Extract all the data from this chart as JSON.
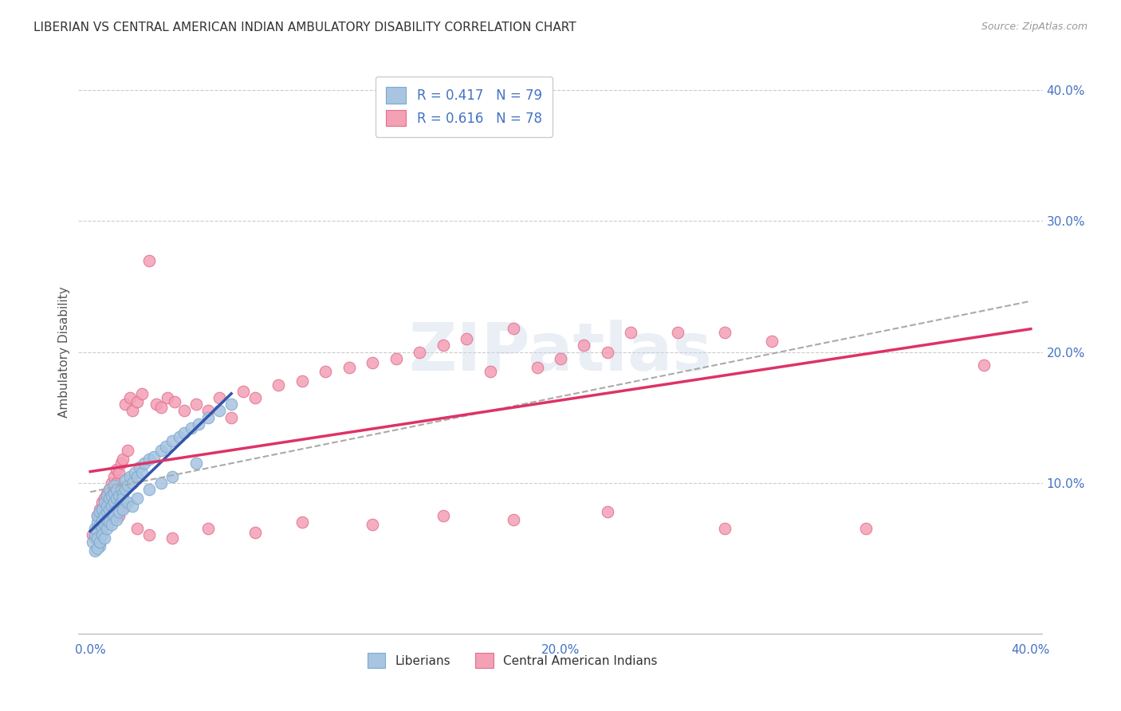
{
  "title": "LIBERIAN VS CENTRAL AMERICAN INDIAN AMBULATORY DISABILITY CORRELATION CHART",
  "source": "Source: ZipAtlas.com",
  "ylabel": "Ambulatory Disability",
  "xlim": [
    -0.005,
    0.405
  ],
  "ylim": [
    -0.02,
    0.42
  ],
  "yticks": [
    0.0,
    0.1,
    0.2,
    0.3,
    0.4
  ],
  "xticks": [
    0.0,
    0.1,
    0.2,
    0.3,
    0.4
  ],
  "ytick_labels_right": [
    "",
    "10.0%",
    "20.0%",
    "30.0%",
    "40.0%"
  ],
  "xtick_labels": [
    "0.0%",
    "",
    "20.0%",
    "",
    "40.0%"
  ],
  "liberian_color": "#a8c4e0",
  "liberian_edge": "#7aaad0",
  "central_american_color": "#f4a0b5",
  "central_american_edge": "#e07090",
  "trend_liberian_color": "#3355aa",
  "trend_central_color": "#dd3366",
  "trend_dashed_color": "#aaaaaa",
  "R_liberian": 0.417,
  "N_liberian": 79,
  "R_central": 0.616,
  "N_central": 78,
  "legend_labels": [
    "Liberians",
    "Central American Indians"
  ],
  "watermark": "ZIPatlas",
  "background_color": "#ffffff",
  "grid_color": "#cccccc",
  "title_color": "#333333",
  "axis_tick_color": "#4472c4",
  "legend_text_color": "#4472c4",
  "liberian_x": [
    0.001,
    0.002,
    0.002,
    0.003,
    0.003,
    0.003,
    0.004,
    0.004,
    0.004,
    0.005,
    0.005,
    0.005,
    0.006,
    0.006,
    0.006,
    0.007,
    0.007,
    0.007,
    0.007,
    0.008,
    0.008,
    0.008,
    0.009,
    0.009,
    0.009,
    0.01,
    0.01,
    0.01,
    0.01,
    0.011,
    0.011,
    0.011,
    0.012,
    0.012,
    0.013,
    0.013,
    0.014,
    0.014,
    0.015,
    0.015,
    0.016,
    0.017,
    0.018,
    0.019,
    0.02,
    0.021,
    0.022,
    0.023,
    0.025,
    0.027,
    0.03,
    0.032,
    0.035,
    0.038,
    0.04,
    0.043,
    0.046,
    0.05,
    0.055,
    0.06,
    0.002,
    0.003,
    0.004,
    0.005,
    0.006,
    0.007,
    0.008,
    0.009,
    0.01,
    0.011,
    0.012,
    0.014,
    0.016,
    0.018,
    0.02,
    0.025,
    0.03,
    0.035,
    0.045
  ],
  "liberian_y": [
    0.055,
    0.06,
    0.065,
    0.058,
    0.07,
    0.075,
    0.052,
    0.068,
    0.078,
    0.065,
    0.08,
    0.072,
    0.075,
    0.085,
    0.068,
    0.078,
    0.09,
    0.082,
    0.072,
    0.08,
    0.088,
    0.095,
    0.082,
    0.09,
    0.075,
    0.085,
    0.092,
    0.078,
    0.098,
    0.088,
    0.095,
    0.078,
    0.09,
    0.082,
    0.095,
    0.085,
    0.092,
    0.088,
    0.095,
    0.102,
    0.098,
    0.105,
    0.1,
    0.108,
    0.105,
    0.112,
    0.108,
    0.115,
    0.118,
    0.12,
    0.125,
    0.128,
    0.132,
    0.135,
    0.138,
    0.142,
    0.145,
    0.15,
    0.155,
    0.16,
    0.048,
    0.05,
    0.055,
    0.06,
    0.058,
    0.065,
    0.07,
    0.068,
    0.075,
    0.072,
    0.078,
    0.08,
    0.085,
    0.082,
    0.088,
    0.095,
    0.1,
    0.105,
    0.115
  ],
  "central_x": [
    0.001,
    0.002,
    0.003,
    0.003,
    0.004,
    0.004,
    0.005,
    0.005,
    0.006,
    0.006,
    0.007,
    0.007,
    0.008,
    0.008,
    0.009,
    0.009,
    0.01,
    0.01,
    0.011,
    0.011,
    0.012,
    0.013,
    0.014,
    0.015,
    0.016,
    0.017,
    0.018,
    0.02,
    0.022,
    0.025,
    0.028,
    0.03,
    0.033,
    0.036,
    0.04,
    0.045,
    0.05,
    0.055,
    0.06,
    0.065,
    0.07,
    0.08,
    0.09,
    0.1,
    0.11,
    0.12,
    0.13,
    0.14,
    0.15,
    0.16,
    0.17,
    0.18,
    0.19,
    0.2,
    0.21,
    0.22,
    0.23,
    0.25,
    0.27,
    0.29,
    0.004,
    0.006,
    0.008,
    0.012,
    0.015,
    0.02,
    0.025,
    0.035,
    0.05,
    0.07,
    0.09,
    0.12,
    0.15,
    0.18,
    0.22,
    0.27,
    0.33,
    0.38
  ],
  "central_y": [
    0.06,
    0.058,
    0.065,
    0.075,
    0.062,
    0.08,
    0.07,
    0.085,
    0.075,
    0.088,
    0.08,
    0.092,
    0.085,
    0.095,
    0.09,
    0.1,
    0.095,
    0.105,
    0.1,
    0.11,
    0.108,
    0.115,
    0.118,
    0.16,
    0.125,
    0.165,
    0.155,
    0.162,
    0.168,
    0.27,
    0.16,
    0.158,
    0.165,
    0.162,
    0.155,
    0.16,
    0.155,
    0.165,
    0.15,
    0.17,
    0.165,
    0.175,
    0.178,
    0.185,
    0.188,
    0.192,
    0.195,
    0.2,
    0.205,
    0.21,
    0.185,
    0.218,
    0.188,
    0.195,
    0.205,
    0.2,
    0.215,
    0.215,
    0.215,
    0.208,
    0.057,
    0.08,
    0.088,
    0.075,
    0.082,
    0.065,
    0.06,
    0.058,
    0.065,
    0.062,
    0.07,
    0.068,
    0.075,
    0.072,
    0.078,
    0.065,
    0.065,
    0.19
  ]
}
